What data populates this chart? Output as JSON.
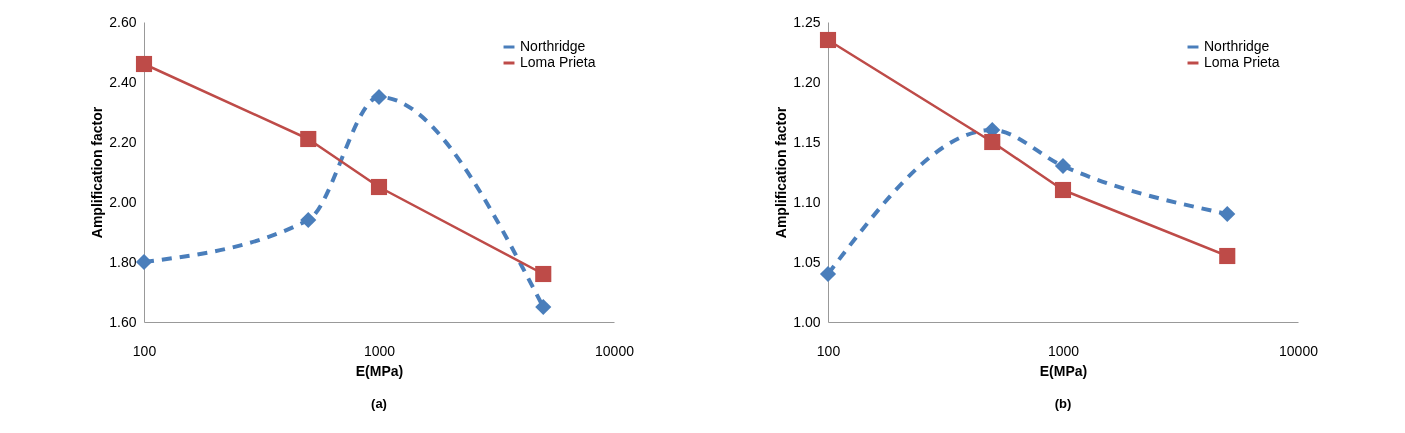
{
  "chart_data": [
    {
      "type": "line",
      "xlabel": "E(MPa)",
      "ylabel": "Amplification factor",
      "log": "x",
      "grid": false,
      "legend": "top right",
      "x": [
        100,
        500,
        1000,
        5000
      ],
      "xlim": [
        100,
        10000
      ],
      "xticks": [
        100,
        1000,
        10000
      ],
      "ylim": [
        1.6,
        2.6
      ],
      "yticks": [
        {
          "value": 1.6,
          "label": "1.60"
        },
        {
          "value": 1.8,
          "label": "1.80"
        },
        {
          "value": 2.0,
          "label": "2.00"
        },
        {
          "value": 2.2,
          "label": "2.20"
        },
        {
          "value": 2.4,
          "label": "2.40"
        },
        {
          "value": 2.6,
          "label": "2.60"
        }
      ],
      "series": [
        {
          "name": "Northridge",
          "color": "#4a7ebb",
          "values": [
            1.8,
            1.94,
            2.35,
            1.65
          ],
          "marker": "diamond",
          "line_style": "dashed"
        },
        {
          "name": "Loma Prieta",
          "color": "#be4b48",
          "values": [
            2.46,
            2.21,
            2.05,
            1.76
          ],
          "marker": "square",
          "line_style": "solid"
        }
      ],
      "annotations": [
        "(a)"
      ]
    },
    {
      "type": "line",
      "xlabel": "E(MPa)",
      "ylabel": "Amplification factor",
      "log": "x",
      "grid": false,
      "legend": "top right",
      "x": [
        100,
        500,
        1000,
        5000
      ],
      "xlim": [
        100,
        10000
      ],
      "xticks": [
        100,
        1000,
        10000
      ],
      "ylim": [
        1.0,
        1.25
      ],
      "yticks": [
        {
          "value": 1.0,
          "label": "1.00"
        },
        {
          "value": 1.05,
          "label": "1.05"
        },
        {
          "value": 1.1,
          "label": "1.10"
        },
        {
          "value": 1.15,
          "label": "1.15"
        },
        {
          "value": 1.2,
          "label": "1.20"
        },
        {
          "value": 1.25,
          "label": "1.25"
        }
      ],
      "series": [
        {
          "name": "Northridge",
          "color": "#4a7ebb",
          "values": [
            1.04,
            1.16,
            1.13,
            1.09
          ],
          "marker": "diamond",
          "line_style": "dashed"
        },
        {
          "name": "Loma Prieta",
          "color": "#be4b48",
          "values": [
            1.235,
            1.15,
            1.11,
            1.055
          ],
          "marker": "square",
          "line_style": "solid"
        }
      ],
      "annotations": [
        "(b)"
      ]
    }
  ]
}
